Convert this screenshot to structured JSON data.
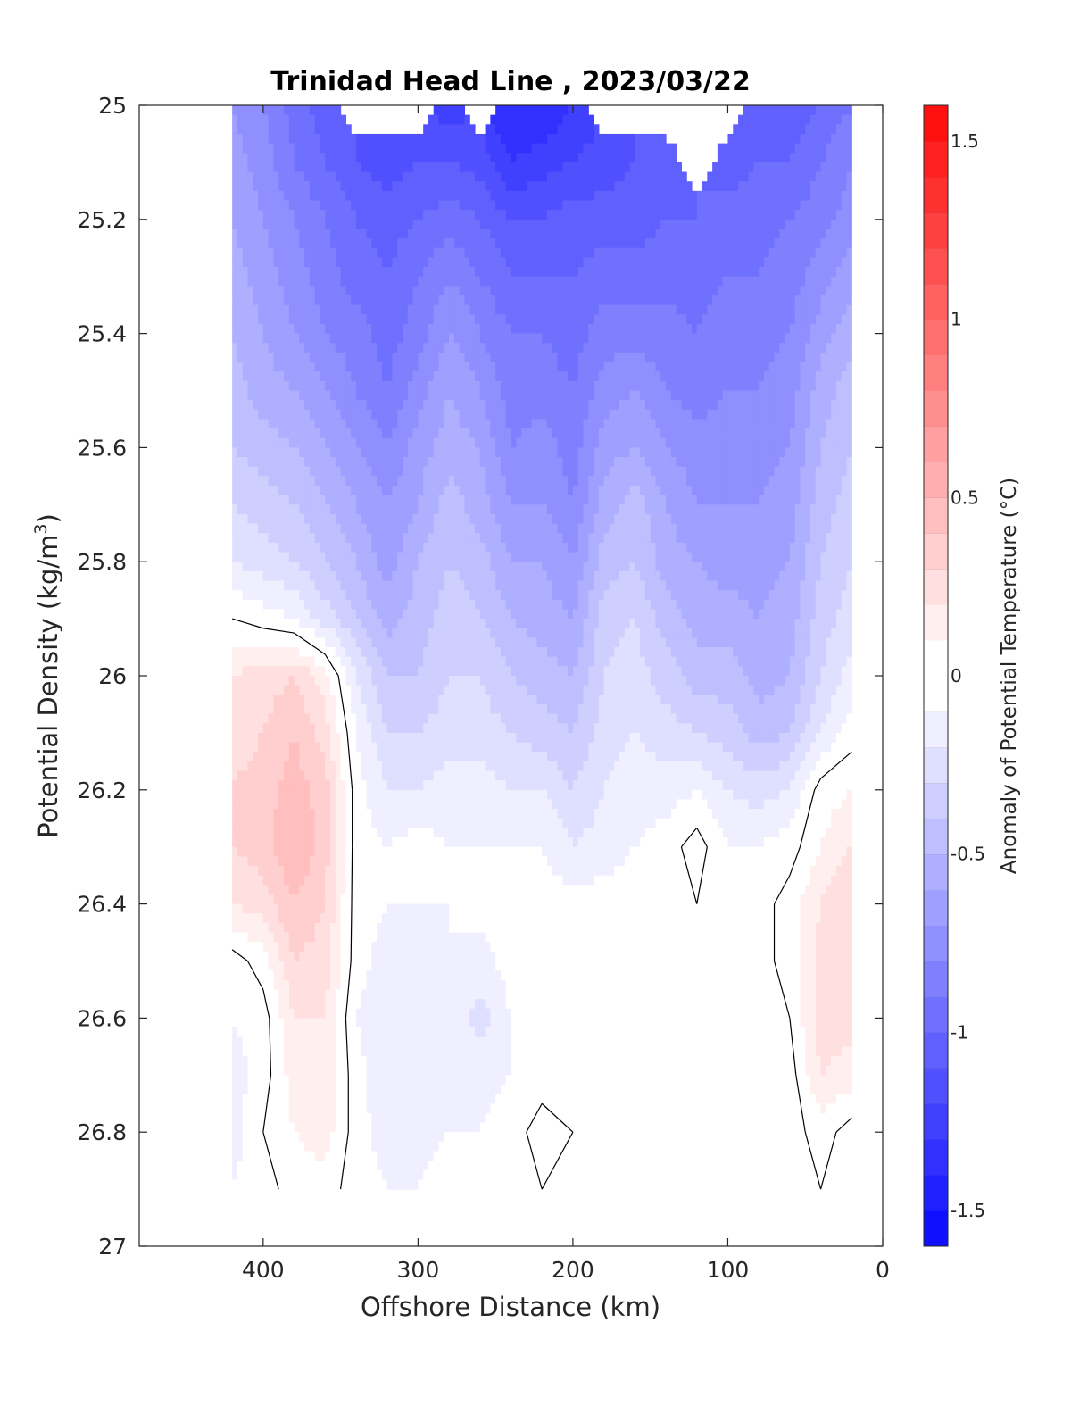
{
  "chart_data": {
    "type": "heatmap",
    "subtype": "filled-contour section",
    "title": "Trinidad Head Line , 2023/03/22",
    "xlabel": "Offshore Distance (km)",
    "ylabel_main": "Potential Density (kg/m",
    "ylabel_sup": "3",
    "ylabel_end": ")",
    "xlim": [
      480,
      0
    ],
    "ylim": [
      25,
      27
    ],
    "x_reversed": true,
    "y_reversed": true,
    "xticks": [
      400,
      300,
      200,
      100,
      0
    ],
    "yticks": [
      25,
      25.2,
      25.4,
      25.6,
      25.8,
      26,
      26.2,
      26.4,
      26.6,
      26.8,
      27
    ],
    "xtick_labels": [
      "400",
      "300",
      "200",
      "100",
      "0"
    ],
    "ytick_labels": [
      "25",
      "25.2",
      "25.4",
      "25.6",
      "25.8",
      "26",
      "26.2",
      "26.4",
      "26.6",
      "26.8",
      "27"
    ],
    "colorbar": {
      "label": "Anomaly of Potential Temperature (°C)",
      "clim": [
        -1.6,
        1.6
      ],
      "level_step": 0.1,
      "ticks": [
        1.5,
        1,
        0.5,
        0,
        -0.5,
        -1,
        -1.5
      ],
      "tick_labels": [
        "1.5",
        "1",
        "0.5",
        "0",
        "-0.5",
        "-1",
        "-1.5"
      ],
      "colormap": "blue-white-red",
      "color_min": "#0000ff",
      "color_zero": "#ffffff",
      "color_max": "#ff0000"
    },
    "data_extent_x": [
      420,
      20
    ],
    "data_extent_y": [
      25,
      26.9
    ],
    "x_stations": [
      420,
      400,
      380,
      360,
      340,
      320,
      300,
      280,
      260,
      240,
      220,
      200,
      180,
      160,
      140,
      120,
      100,
      80,
      60,
      40,
      20
    ],
    "sigma_levels": [
      25.0,
      25.1,
      25.2,
      25.3,
      25.4,
      25.5,
      25.6,
      25.7,
      25.8,
      25.9,
      26.0,
      26.1,
      26.2,
      26.3,
      26.4,
      26.5,
      26.6,
      26.7,
      26.8,
      26.9
    ],
    "temperature_anomaly": [
      [
        -0.7,
        -0.8,
        -0.95,
        -1.05,
        null,
        null,
        null,
        -1.25,
        null,
        -1.4,
        -1.4,
        -1.3,
        null,
        null,
        null,
        null,
        null,
        -1.1,
        -1.1,
        -1.0,
        -0.9
      ],
      [
        -0.65,
        -0.75,
        -0.9,
        -1.0,
        -1.1,
        -1.15,
        -1.1,
        -1.1,
        -1.15,
        -1.3,
        -1.25,
        -1.2,
        -1.15,
        -1.1,
        -1.05,
        null,
        -1.05,
        -1.0,
        -1.0,
        -0.9,
        -0.8
      ],
      [
        -0.6,
        -0.7,
        -0.8,
        -0.9,
        -1.0,
        -1.05,
        -1.0,
        -0.95,
        -1.0,
        -1.1,
        -1.1,
        -1.05,
        -1.05,
        -1.05,
        -1.0,
        -1.0,
        -0.95,
        -0.95,
        -0.9,
        -0.85,
        -0.75
      ],
      [
        -0.55,
        -0.65,
        -0.75,
        -0.85,
        -0.95,
        -1.0,
        -0.9,
        -0.8,
        -0.9,
        -1.0,
        -1.0,
        -1.0,
        -0.95,
        -0.95,
        -0.95,
        -0.95,
        -0.9,
        -0.9,
        -0.85,
        -0.75,
        -0.65
      ],
      [
        -0.5,
        -0.6,
        -0.7,
        -0.8,
        -0.85,
        -0.95,
        -0.85,
        -0.7,
        -0.8,
        -0.9,
        -0.9,
        -0.95,
        -0.85,
        -0.85,
        -0.85,
        -0.9,
        -0.85,
        -0.85,
        -0.8,
        -0.65,
        -0.55
      ],
      [
        -0.45,
        -0.55,
        -0.6,
        -0.7,
        -0.8,
        -0.9,
        -0.75,
        -0.6,
        -0.7,
        -0.85,
        -0.85,
        -0.9,
        -0.75,
        -0.7,
        -0.8,
        -0.85,
        -0.8,
        -0.8,
        -0.75,
        -0.55,
        -0.45
      ],
      [
        -0.4,
        -0.45,
        -0.5,
        -0.6,
        -0.7,
        -0.8,
        -0.65,
        -0.55,
        -0.6,
        -0.8,
        -0.75,
        -0.85,
        -0.65,
        -0.6,
        -0.7,
        -0.75,
        -0.75,
        -0.75,
        -0.7,
        -0.5,
        -0.4
      ],
      [
        -0.3,
        -0.35,
        -0.4,
        -0.5,
        -0.6,
        -0.7,
        -0.6,
        -0.45,
        -0.55,
        -0.7,
        -0.7,
        -0.8,
        -0.55,
        -0.45,
        -0.6,
        -0.7,
        -0.7,
        -0.7,
        -0.65,
        -0.45,
        -0.35
      ],
      [
        -0.2,
        -0.25,
        -0.3,
        -0.4,
        -0.5,
        -0.65,
        -0.5,
        -0.4,
        -0.45,
        -0.6,
        -0.6,
        -0.7,
        -0.45,
        -0.4,
        -0.55,
        -0.6,
        -0.65,
        -0.65,
        -0.6,
        -0.4,
        -0.3
      ],
      [
        0.0,
        -0.05,
        -0.1,
        -0.25,
        -0.4,
        -0.55,
        -0.45,
        -0.35,
        -0.4,
        -0.5,
        -0.55,
        -0.6,
        -0.35,
        -0.3,
        -0.45,
        -0.55,
        -0.55,
        -0.6,
        -0.55,
        -0.35,
        -0.25
      ],
      [
        0.2,
        0.25,
        0.3,
        0.15,
        -0.2,
        -0.4,
        -0.4,
        -0.3,
        -0.3,
        -0.4,
        -0.45,
        -0.5,
        -0.3,
        -0.25,
        -0.35,
        -0.45,
        -0.45,
        -0.55,
        -0.5,
        -0.3,
        -0.15
      ],
      [
        0.25,
        0.3,
        0.4,
        0.25,
        -0.1,
        -0.3,
        -0.3,
        -0.25,
        -0.25,
        -0.3,
        -0.35,
        -0.4,
        -0.25,
        -0.2,
        -0.25,
        -0.3,
        -0.35,
        -0.45,
        -0.4,
        -0.2,
        -0.05
      ],
      [
        0.3,
        0.35,
        0.45,
        0.35,
        -0.05,
        -0.2,
        -0.2,
        -0.15,
        -0.15,
        -0.2,
        -0.2,
        -0.3,
        -0.2,
        -0.15,
        -0.15,
        -0.1,
        -0.2,
        -0.25,
        -0.2,
        0.05,
        0.1
      ],
      [
        0.3,
        0.35,
        0.5,
        0.35,
        -0.05,
        -0.1,
        -0.05,
        -0.1,
        -0.1,
        -0.1,
        -0.1,
        -0.2,
        -0.15,
        -0.1,
        -0.05,
        0.05,
        -0.1,
        -0.1,
        -0.05,
        0.1,
        0.2
      ],
      [
        0.2,
        0.25,
        0.4,
        0.3,
        -0.05,
        -0.1,
        -0.1,
        -0.1,
        -0.05,
        -0.05,
        -0.05,
        -0.05,
        -0.05,
        -0.05,
        -0.05,
        0.0,
        -0.05,
        -0.05,
        0.05,
        0.2,
        0.3
      ],
      [
        -0.05,
        0.05,
        0.3,
        0.25,
        -0.05,
        -0.15,
        -0.15,
        -0.1,
        -0.15,
        -0.05,
        -0.05,
        -0.05,
        -0.1,
        -0.05,
        -0.05,
        -0.05,
        -0.05,
        -0.05,
        0.05,
        0.25,
        0.3
      ],
      [
        -0.1,
        -0.05,
        0.2,
        0.2,
        -0.1,
        -0.2,
        -0.2,
        -0.1,
        -0.25,
        -0.1,
        -0.05,
        -0.05,
        -0.1,
        -0.05,
        -0.05,
        -0.05,
        -0.05,
        -0.1,
        0.0,
        0.25,
        0.25
      ],
      [
        -0.15,
        -0.05,
        0.15,
        0.15,
        -0.05,
        -0.2,
        -0.2,
        -0.1,
        -0.15,
        -0.1,
        -0.05,
        -0.05,
        -0.1,
        -0.05,
        -0.05,
        -0.05,
        -0.05,
        -0.1,
        -0.05,
        0.2,
        0.15
      ],
      [
        -0.15,
        0.0,
        0.1,
        0.15,
        -0.05,
        -0.15,
        -0.15,
        -0.1,
        -0.1,
        -0.05,
        0.05,
        0.0,
        -0.05,
        -0.05,
        -0.05,
        -0.05,
        -0.05,
        -0.1,
        -0.05,
        0.05,
        -0.05
      ],
      [
        -0.1,
        -0.05,
        0.05,
        0.05,
        -0.05,
        -0.1,
        -0.1,
        -0.05,
        -0.05,
        0.0,
        0.0,
        0.0,
        -0.05,
        0.0,
        0.0,
        -0.05,
        -0.05,
        -0.1,
        -0.05,
        0.0,
        -0.05
      ]
    ]
  }
}
